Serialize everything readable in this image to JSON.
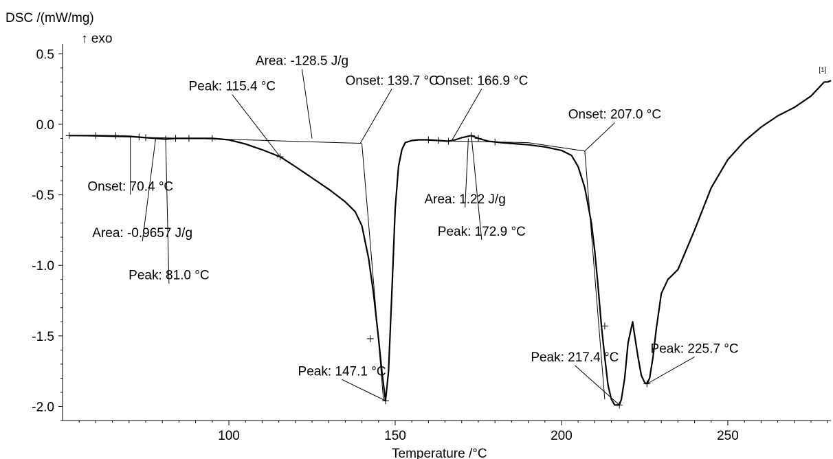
{
  "chart_data": {
    "type": "line",
    "ylabel": "DSC /(mW/mg)",
    "exo_label": "↑ exo",
    "xlabel": "Temperature /°C",
    "curve_label": "[1]",
    "xlim": [
      50,
      281
    ],
    "ylim": [
      -2.1,
      0.55
    ],
    "x_ticks": [
      100,
      150,
      200,
      250
    ],
    "y_ticks": [
      0.5,
      0.0,
      -0.5,
      -1.0,
      -1.5,
      -2.0
    ],
    "y_tick_labels": [
      "0.5",
      "0.0",
      "-0.5",
      "-1.0",
      "-1.5",
      "-2.0"
    ],
    "series": [
      {
        "x": [
          52,
          60,
          70,
          75,
          78,
          81,
          84,
          88,
          95,
          100,
          105,
          110,
          115.4,
          120,
          125,
          130,
          135,
          138,
          140,
          142,
          143.5,
          145,
          146,
          147.1,
          148,
          149,
          150,
          151,
          152,
          153,
          155,
          157,
          160,
          163,
          166,
          168,
          170,
          172.9,
          175,
          178,
          182,
          190,
          195,
          200,
          203,
          205,
          207,
          209,
          210,
          211,
          212,
          213,
          214,
          215,
          216,
          217.4,
          218,
          219,
          220,
          221.4,
          222,
          223,
          224,
          225,
          225.7,
          226.5,
          227.5,
          228.5,
          230,
          232,
          235,
          240,
          245,
          250,
          255,
          260,
          265,
          270,
          275,
          279,
          280,
          281
        ],
        "y": [
          -0.08,
          -0.08,
          -0.085,
          -0.095,
          -0.1,
          -0.105,
          -0.1,
          -0.1,
          -0.1,
          -0.11,
          -0.14,
          -0.18,
          -0.23,
          -0.3,
          -0.38,
          -0.46,
          -0.55,
          -0.62,
          -0.72,
          -0.95,
          -1.2,
          -1.52,
          -1.75,
          -1.96,
          -1.75,
          -1.2,
          -0.6,
          -0.3,
          -0.18,
          -0.13,
          -0.115,
          -0.11,
          -0.11,
          -0.115,
          -0.12,
          -0.11,
          -0.095,
          -0.08,
          -0.1,
          -0.12,
          -0.13,
          -0.145,
          -0.16,
          -0.185,
          -0.22,
          -0.3,
          -0.45,
          -0.7,
          -0.9,
          -1.15,
          -1.43,
          -1.65,
          -1.85,
          -1.95,
          -1.99,
          -1.99,
          -1.95,
          -1.8,
          -1.55,
          -1.4,
          -1.5,
          -1.65,
          -1.78,
          -1.83,
          -1.84,
          -1.8,
          -1.65,
          -1.45,
          -1.2,
          -1.1,
          -1.03,
          -0.75,
          -0.45,
          -0.25,
          -0.12,
          -0.02,
          0.06,
          0.12,
          0.2,
          0.3,
          0.3,
          0.31
        ]
      }
    ],
    "baselines": [
      {
        "x": [
          52,
          105
        ],
        "y": [
          -0.08,
          -0.11
        ]
      },
      {
        "x": [
          105,
          140
        ],
        "y": [
          -0.11,
          -0.135
        ]
      },
      {
        "x": [
          160,
          190
        ],
        "y": [
          -0.115,
          -0.13
        ]
      },
      {
        "x": [
          190,
          207
        ],
        "y": [
          -0.13,
          -0.19
        ]
      }
    ],
    "tangents": [
      {
        "x": [
          140,
          146.5
        ],
        "y": [
          -0.14,
          -1.96
        ]
      },
      {
        "x": [
          207,
          213
        ],
        "y": [
          -0.19,
          -1.95
        ]
      }
    ],
    "markers": {
      "x": [
        52,
        60,
        66,
        73,
        75,
        81,
        84,
        88,
        95,
        115.4,
        142.5,
        147.1,
        160,
        163,
        166,
        172.9,
        175,
        180,
        213,
        217.4,
        225.7
      ],
      "y": [
        -0.08,
        -0.08,
        -0.08,
        -0.09,
        -0.095,
        -0.105,
        -0.1,
        -0.1,
        -0.1,
        -0.23,
        -1.52,
        -1.96,
        -0.11,
        -0.115,
        -0.12,
        -0.08,
        -0.1,
        -0.125,
        -1.43,
        -1.99,
        -1.84
      ]
    },
    "annotations": [
      {
        "text": "Area: -128.5 J/g",
        "lx": 122,
        "ly": 0.42,
        "tx": 125,
        "ty": -0.1
      },
      {
        "text": "Peak: 115.4 °C",
        "lx": 101,
        "ly": 0.24,
        "tx": 115.4,
        "ty": -0.23
      },
      {
        "text": "Onset: 139.7 °C",
        "lx": 149,
        "ly": 0.28,
        "tx": 139.5,
        "ty": -0.135
      },
      {
        "text": "Onset: 166.9 °C",
        "lx": 176,
        "ly": 0.28,
        "tx": 166.9,
        "ty": -0.12
      },
      {
        "text": "Onset: 207.0 °C",
        "lx": 216,
        "ly": 0.04,
        "tx": 207,
        "ty": -0.19
      },
      {
        "text": "Onset: 70.4 °C",
        "lx": 70.4,
        "ly": -0.47,
        "tx": 70.4,
        "ty": -0.085
      },
      {
        "text": "Area: 1.22 J/g",
        "lx": 171,
        "ly": -0.56,
        "tx": 172,
        "ty": -0.1
      },
      {
        "text": "Area: -0.9657 J/g",
        "lx": 74,
        "ly": -0.8,
        "tx": 78,
        "ty": -0.1
      },
      {
        "text": "Peak: 172.9 °C",
        "lx": 176,
        "ly": -0.79,
        "tx": 172.9,
        "ty": -0.08
      },
      {
        "text": "Peak: 81.0 °C",
        "lx": 82,
        "ly": -1.1,
        "tx": 81,
        "ty": -0.105
      },
      {
        "text": "Peak: 147.1 °C",
        "lx": 134,
        "ly": -1.78,
        "tx": 147.1,
        "ty": -1.96
      },
      {
        "text": "Peak: 217.4 °C",
        "lx": 204,
        "ly": -1.68,
        "tx": 217.4,
        "ty": -1.99
      },
      {
        "text": "Peak: 225.7 °C",
        "lx": 240,
        "ly": -1.62,
        "tx": 225.7,
        "ty": -1.84
      }
    ]
  }
}
